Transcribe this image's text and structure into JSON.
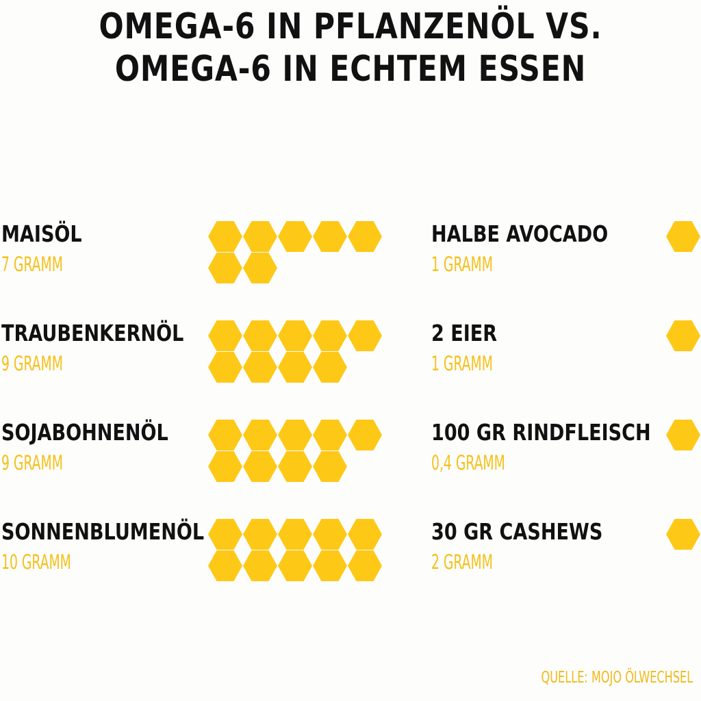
{
  "title_line1": "OMEGA-6 IN PFLANZENÖL VS.",
  "title_line2": "OMEGA-6 IN ECHTEM ESSEN",
  "source": "QUELLE: MOJO ÖLWECHSEL",
  "colors": {
    "hexagon": "#fec817",
    "amount_text": "#f5c019",
    "label_text": "#111111"
  },
  "chart_data": {
    "type": "pictogram",
    "unit": "GRAMM",
    "icon": "hexagon",
    "per_icon": 1,
    "groups": [
      {
        "position": "left",
        "items": [
          {
            "label": "MAISÖL",
            "value": 7,
            "value_label": "7 GRAMM"
          },
          {
            "label": "TRAUBENKERNÖL",
            "value": 9,
            "value_label": "9 GRAMM"
          },
          {
            "label": "SOJABOHNENÖL",
            "value": 9,
            "value_label": "9 GRAMM"
          },
          {
            "label": "SONNENBLUMENÖL",
            "value": 10,
            "value_label": "10 GRAMM"
          }
        ]
      },
      {
        "position": "right",
        "items": [
          {
            "label": "HALBE AVOCADO",
            "value": 1,
            "value_label": "1 GRAMM"
          },
          {
            "label": "2 EIER",
            "value": 1,
            "value_label": "1 GRAMM"
          },
          {
            "label": "100 GR RINDFLEISCH",
            "value": 0.4,
            "value_label": "0,4 GRAMM"
          },
          {
            "label": "30 GR CASHEWS",
            "value": 2,
            "value_label": "2 GRAMM"
          }
        ]
      }
    ]
  }
}
